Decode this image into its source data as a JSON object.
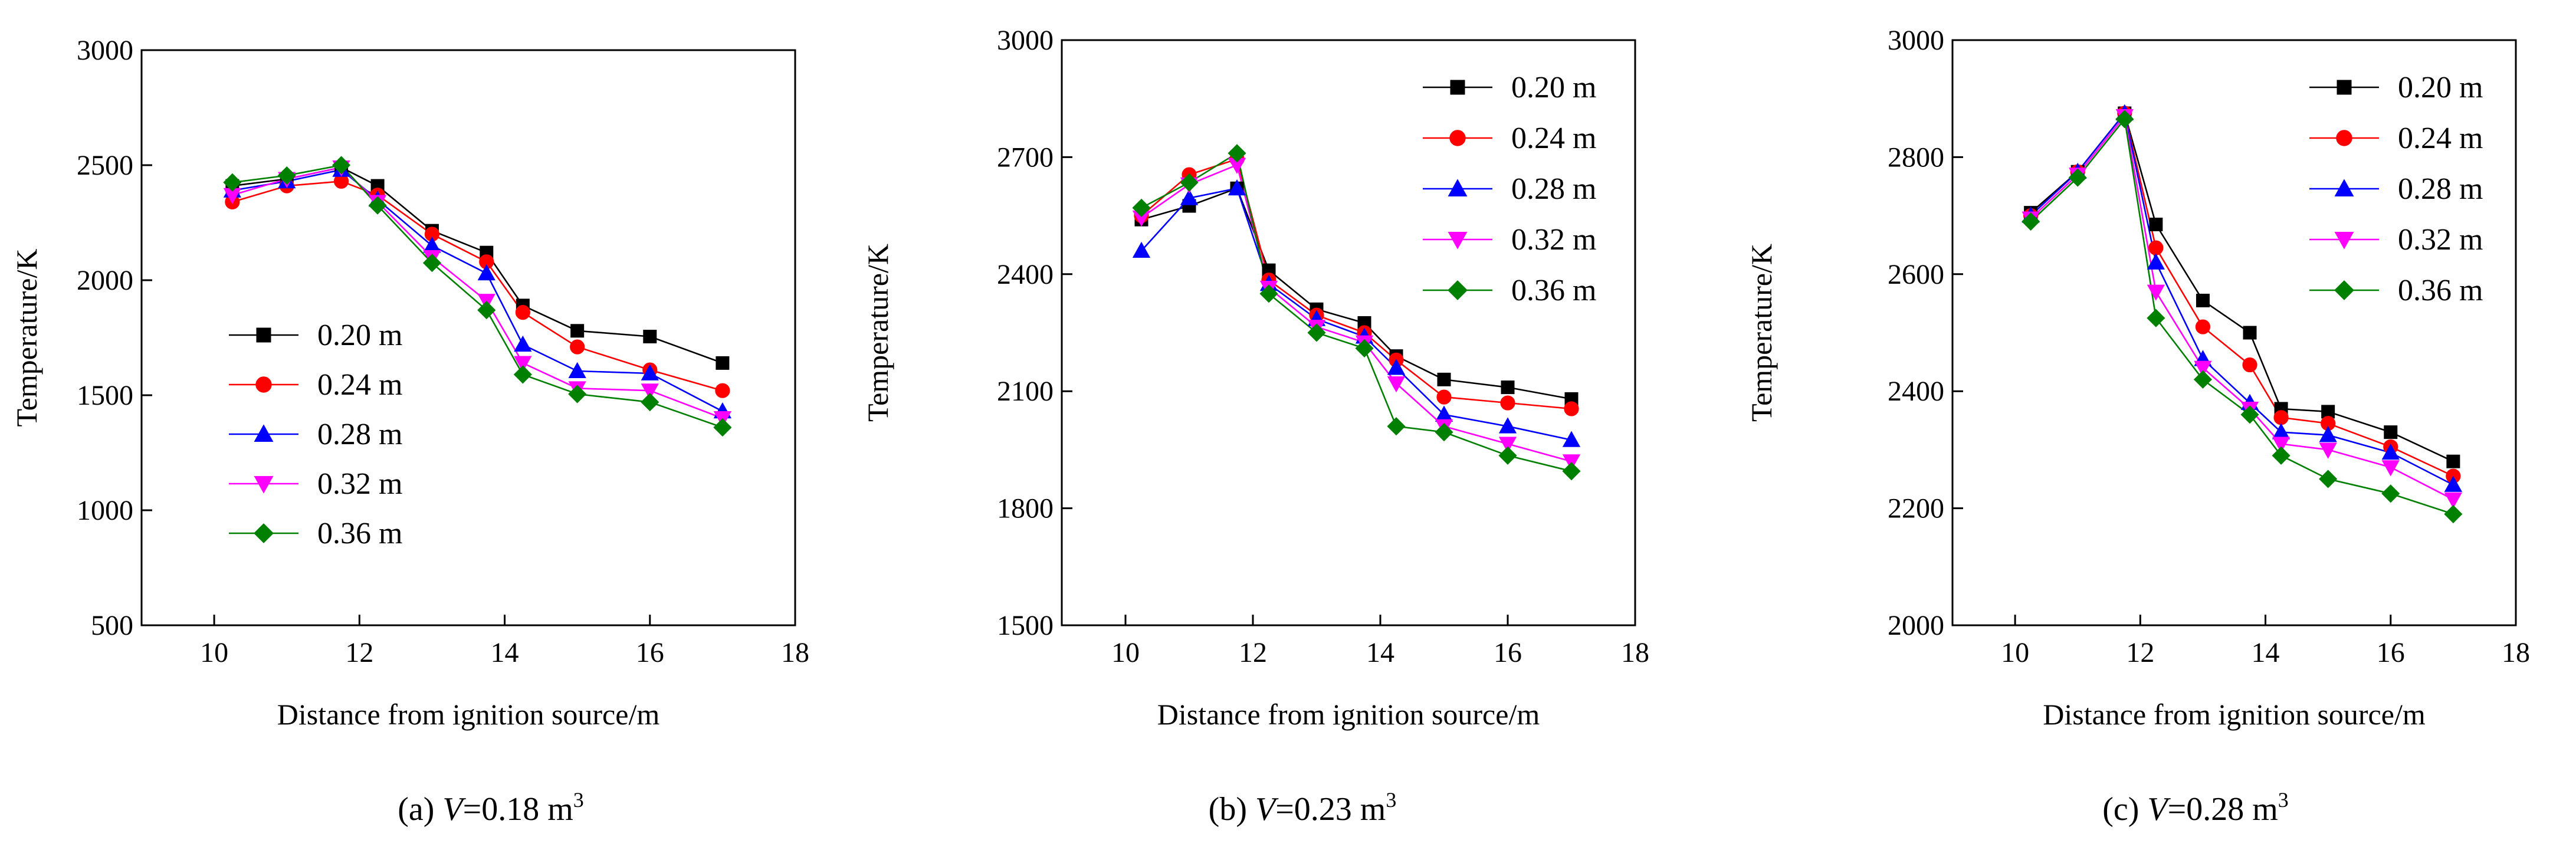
{
  "chart_data": [
    {
      "type": "line",
      "panel_label": "(a)",
      "caption": {
        "prefix": "(a) ",
        "var": "V",
        "rest": "=0.18 m",
        "sup": "3"
      },
      "xlabel": "Distance from ignition source/m",
      "ylabel": "Temperature/K",
      "xlim": [
        9,
        18
      ],
      "ylim": [
        500,
        3000
      ],
      "xticks": [
        10,
        12,
        14,
        16,
        18
      ],
      "yticks": [
        500,
        1000,
        1500,
        2000,
        2500,
        3000
      ],
      "legend_position": "center-left",
      "x": [
        10.25,
        11,
        11.75,
        12.25,
        13,
        13.75,
        14.25,
        15,
        16,
        17
      ],
      "series": [
        {
          "name": "0.20 m",
          "color": "#000000",
          "marker": "square",
          "values": [
            2410,
            2440,
            2490,
            2410,
            2215,
            2120,
            1890,
            1780,
            1755,
            1640
          ]
        },
        {
          "name": "0.24 m",
          "color": "#ff0000",
          "marker": "circle",
          "values": [
            2340,
            2410,
            2430,
            2370,
            2200,
            2080,
            1860,
            1710,
            1610,
            1520
          ]
        },
        {
          "name": "0.28 m",
          "color": "#0000ff",
          "marker": "triangle-up",
          "values": [
            2390,
            2430,
            2480,
            2350,
            2150,
            2030,
            1720,
            1605,
            1595,
            1430
          ]
        },
        {
          "name": "0.32 m",
          "color": "#ff00ff",
          "marker": "triangle-down",
          "values": [
            2370,
            2440,
            2490,
            2340,
            2100,
            1910,
            1640,
            1530,
            1520,
            1400
          ]
        },
        {
          "name": "0.36 m",
          "color": "#008000",
          "marker": "diamond",
          "values": [
            2425,
            2455,
            2500,
            2325,
            2075,
            1870,
            1590,
            1505,
            1470,
            1360
          ]
        }
      ]
    },
    {
      "type": "line",
      "panel_label": "(b)",
      "caption": {
        "prefix": "(b) ",
        "var": "V",
        "rest": "=0.23 m",
        "sup": "3"
      },
      "xlabel": "Distance from ignition source/m",
      "ylabel": "Temperature/K",
      "xlim": [
        9,
        18
      ],
      "ylim": [
        1500,
        3000
      ],
      "xticks": [
        10,
        12,
        14,
        16,
        18
      ],
      "yticks": [
        1500,
        1800,
        2100,
        2400,
        2700,
        3000
      ],
      "legend_position": "top-right",
      "x": [
        10.25,
        11,
        11.75,
        12.25,
        13,
        13.75,
        14.25,
        15,
        16,
        17
      ],
      "series": [
        {
          "name": "0.20 m",
          "color": "#000000",
          "marker": "square",
          "values": [
            2540,
            2575,
            2620,
            2410,
            2310,
            2275,
            2190,
            2130,
            2110,
            2080
          ]
        },
        {
          "name": "0.24 m",
          "color": "#ff0000",
          "marker": "circle",
          "values": [
            2550,
            2655,
            2695,
            2385,
            2295,
            2250,
            2180,
            2085,
            2070,
            2055
          ]
        },
        {
          "name": "0.28 m",
          "color": "#0000ff",
          "marker": "triangle-up",
          "values": [
            2460,
            2595,
            2620,
            2375,
            2285,
            2240,
            2160,
            2040,
            2010,
            1975
          ]
        },
        {
          "name": "0.32 m",
          "color": "#ff00ff",
          "marker": "triangle-down",
          "values": [
            2545,
            2630,
            2680,
            2365,
            2265,
            2225,
            2120,
            2010,
            1965,
            1920
          ]
        },
        {
          "name": "0.36 m",
          "color": "#008000",
          "marker": "diamond",
          "values": [
            2570,
            2635,
            2710,
            2350,
            2250,
            2210,
            2010,
            1995,
            1935,
            1895
          ]
        }
      ]
    },
    {
      "type": "line",
      "panel_label": "(c)",
      "caption": {
        "prefix": "(c) ",
        "var": "V",
        "rest": "=0.28 m",
        "sup": "3"
      },
      "xlabel": "Distance from ignition source/m",
      "ylabel": "Temperature/K",
      "xlim": [
        9,
        18
      ],
      "ylim": [
        2000,
        3000
      ],
      "xticks": [
        10,
        12,
        14,
        16,
        18
      ],
      "yticks": [
        2000,
        2200,
        2400,
        2600,
        2800,
        3000
      ],
      "legend_position": "top-right",
      "x": [
        10.25,
        11,
        11.75,
        12.25,
        13,
        13.75,
        14.25,
        15,
        16,
        17
      ],
      "series": [
        {
          "name": "0.20 m",
          "color": "#000000",
          "marker": "square",
          "values": [
            2705,
            2775,
            2875,
            2685,
            2555,
            2500,
            2370,
            2365,
            2330,
            2280
          ]
        },
        {
          "name": "0.24 m",
          "color": "#ff0000",
          "marker": "circle",
          "values": [
            2700,
            2775,
            2875,
            2645,
            2510,
            2445,
            2355,
            2345,
            2305,
            2255
          ]
        },
        {
          "name": "0.28 m",
          "color": "#0000ff",
          "marker": "triangle-up",
          "values": [
            2700,
            2775,
            2875,
            2620,
            2455,
            2380,
            2330,
            2325,
            2295,
            2240
          ]
        },
        {
          "name": "0.32 m",
          "color": "#ff00ff",
          "marker": "triangle-down",
          "values": [
            2695,
            2770,
            2870,
            2570,
            2440,
            2370,
            2310,
            2300,
            2270,
            2215
          ]
        },
        {
          "name": "0.36 m",
          "color": "#008000",
          "marker": "diamond",
          "values": [
            2690,
            2765,
            2865,
            2525,
            2420,
            2360,
            2290,
            2250,
            2225,
            2190
          ]
        }
      ]
    }
  ]
}
